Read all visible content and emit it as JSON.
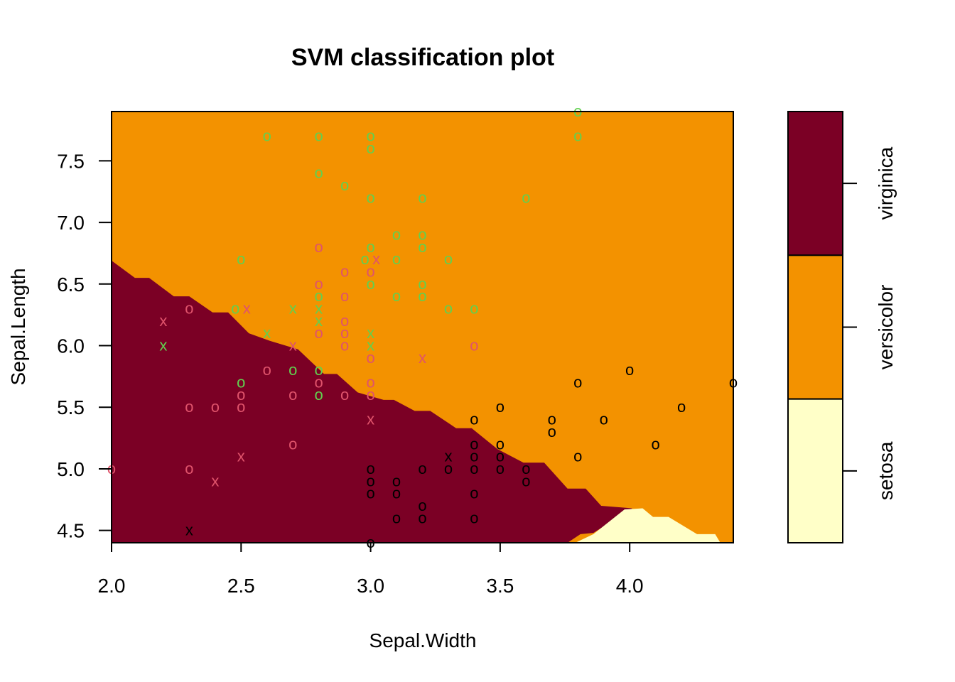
{
  "chart_data": {
    "type": "scatter",
    "title": "SVM classification plot",
    "xlabel": "Sepal.Width",
    "ylabel": "Sepal.Length",
    "xlim": [
      2.0,
      4.4
    ],
    "ylim": [
      4.4,
      7.9
    ],
    "xticks": [
      "2.0",
      "2.5",
      "3.0",
      "3.5",
      "4.0"
    ],
    "yticks": [
      "4.5",
      "5.0",
      "5.5",
      "6.0",
      "6.5",
      "7.0",
      "7.5"
    ],
    "grid": false,
    "classes": [
      {
        "name": "setosa",
        "region_color": "#FFFFC8",
        "point_color": "#000000"
      },
      {
        "name": "versicolor",
        "region_color": "#F39200",
        "point_color": "#DF536B"
      },
      {
        "name": "virginica",
        "region_color": "#7B0025",
        "point_color": "#61D04F"
      }
    ],
    "legend": {
      "placement": "right",
      "labels": [
        "virginica",
        "versicolor",
        "setosa"
      ]
    },
    "background_class": "versicolor",
    "regions": [
      {
        "class": "virginica",
        "polygon": [
          [
            2.0,
            6.69
          ],
          [
            2.09,
            6.55
          ],
          [
            2.145,
            6.55
          ],
          [
            2.24,
            6.4
          ],
          [
            2.3,
            6.4
          ],
          [
            2.39,
            6.27
          ],
          [
            2.45,
            6.27
          ],
          [
            2.53,
            6.1
          ],
          [
            2.61,
            6.04
          ],
          [
            2.72,
            5.97
          ],
          [
            2.82,
            5.77
          ],
          [
            2.87,
            5.77
          ],
          [
            2.95,
            5.62
          ],
          [
            3.05,
            5.56
          ],
          [
            3.09,
            5.56
          ],
          [
            3.17,
            5.47
          ],
          [
            3.23,
            5.47
          ],
          [
            3.33,
            5.33
          ],
          [
            3.39,
            5.33
          ],
          [
            3.49,
            5.16
          ],
          [
            3.59,
            5.05
          ],
          [
            3.67,
            5.05
          ],
          [
            3.76,
            4.84
          ],
          [
            3.83,
            4.84
          ],
          [
            3.89,
            4.7
          ],
          [
            4.01,
            4.68
          ],
          [
            3.86,
            4.48
          ],
          [
            3.81,
            4.47
          ],
          [
            3.76,
            4.4
          ],
          [
            2.0,
            4.4
          ]
        ]
      },
      {
        "class": "setosa",
        "polygon": [
          [
            3.79,
            4.4
          ],
          [
            3.86,
            4.47
          ],
          [
            3.98,
            4.67
          ],
          [
            4.05,
            4.68
          ],
          [
            4.09,
            4.61
          ],
          [
            4.15,
            4.61
          ],
          [
            4.26,
            4.47
          ],
          [
            4.33,
            4.47
          ],
          [
            4.35,
            4.4
          ]
        ]
      }
    ],
    "points": [
      {
        "x": 2.6,
        "y": 7.7,
        "class": "virginica",
        "sv": false
      },
      {
        "x": 2.8,
        "y": 7.7,
        "class": "virginica",
        "sv": false
      },
      {
        "x": 3.0,
        "y": 7.7,
        "class": "virginica",
        "sv": false
      },
      {
        "x": 3.0,
        "y": 7.6,
        "class": "virginica",
        "sv": false
      },
      {
        "x": 3.8,
        "y": 7.9,
        "class": "virginica",
        "sv": false
      },
      {
        "x": 3.8,
        "y": 7.7,
        "class": "virginica",
        "sv": false
      },
      {
        "x": 2.8,
        "y": 7.4,
        "class": "virginica",
        "sv": false
      },
      {
        "x": 2.9,
        "y": 7.3,
        "class": "virginica",
        "sv": false
      },
      {
        "x": 3.0,
        "y": 7.2,
        "class": "virginica",
        "sv": false
      },
      {
        "x": 3.2,
        "y": 7.2,
        "class": "virginica",
        "sv": false
      },
      {
        "x": 3.6,
        "y": 7.2,
        "class": "virginica",
        "sv": false
      },
      {
        "x": 3.1,
        "y": 6.9,
        "class": "virginica",
        "sv": false
      },
      {
        "x": 3.2,
        "y": 6.9,
        "class": "virginica",
        "sv": false
      },
      {
        "x": 3.0,
        "y": 6.8,
        "class": "virginica",
        "sv": false
      },
      {
        "x": 3.2,
        "y": 6.8,
        "class": "virginica",
        "sv": false
      },
      {
        "x": 2.5,
        "y": 6.7,
        "class": "virginica",
        "sv": false
      },
      {
        "x": 3.0,
        "y": 6.7,
        "class": "virginica",
        "sv": false
      },
      {
        "x": 3.1,
        "y": 6.7,
        "class": "virginica",
        "sv": false
      },
      {
        "x": 3.3,
        "y": 6.7,
        "class": "virginica",
        "sv": false
      },
      {
        "x": 3.0,
        "y": 6.5,
        "class": "virginica",
        "sv": false
      },
      {
        "x": 3.2,
        "y": 6.5,
        "class": "virginica",
        "sv": false
      },
      {
        "x": 2.8,
        "y": 6.4,
        "class": "virginica",
        "sv": false
      },
      {
        "x": 3.1,
        "y": 6.4,
        "class": "virginica",
        "sv": false
      },
      {
        "x": 3.2,
        "y": 6.4,
        "class": "virginica",
        "sv": false
      },
      {
        "x": 3.3,
        "y": 6.3,
        "class": "virginica",
        "sv": false
      },
      {
        "x": 3.4,
        "y": 6.3,
        "class": "virginica",
        "sv": false
      },
      {
        "x": 2.5,
        "y": 6.3,
        "class": "virginica",
        "sv": false
      },
      {
        "x": 2.5,
        "y": 5.7,
        "class": "virginica",
        "sv": false
      },
      {
        "x": 2.7,
        "y": 5.8,
        "class": "virginica",
        "sv": false
      },
      {
        "x": 2.8,
        "y": 5.8,
        "class": "virginica",
        "sv": false
      },
      {
        "x": 2.8,
        "y": 5.6,
        "class": "virginica",
        "sv": false
      },
      {
        "x": 2.7,
        "y": 6.3,
        "class": "virginica",
        "sv": true
      },
      {
        "x": 2.8,
        "y": 6.3,
        "class": "virginica",
        "sv": true
      },
      {
        "x": 2.8,
        "y": 6.2,
        "class": "virginica",
        "sv": true
      },
      {
        "x": 2.6,
        "y": 6.1,
        "class": "virginica",
        "sv": true
      },
      {
        "x": 2.2,
        "y": 6.0,
        "class": "virginica",
        "sv": true
      },
      {
        "x": 3.0,
        "y": 6.1,
        "class": "virginica",
        "sv": true
      },
      {
        "x": 3.0,
        "y": 6.0,
        "class": "virginica",
        "sv": true
      },
      {
        "x": 2.8,
        "y": 6.8,
        "class": "versicolor",
        "sv": false
      },
      {
        "x": 2.9,
        "y": 6.6,
        "class": "versicolor",
        "sv": false
      },
      {
        "x": 3.0,
        "y": 6.6,
        "class": "versicolor",
        "sv": false
      },
      {
        "x": 2.8,
        "y": 6.5,
        "class": "versicolor",
        "sv": false
      },
      {
        "x": 2.9,
        "y": 6.4,
        "class": "versicolor",
        "sv": false
      },
      {
        "x": 2.3,
        "y": 6.3,
        "class": "versicolor",
        "sv": false
      },
      {
        "x": 2.9,
        "y": 6.2,
        "class": "versicolor",
        "sv": false
      },
      {
        "x": 2.8,
        "y": 6.1,
        "class": "versicolor",
        "sv": false
      },
      {
        "x": 2.9,
        "y": 6.1,
        "class": "versicolor",
        "sv": false
      },
      {
        "x": 2.9,
        "y": 6.0,
        "class": "versicolor",
        "sv": false
      },
      {
        "x": 3.0,
        "y": 5.9,
        "class": "versicolor",
        "sv": false
      },
      {
        "x": 3.4,
        "y": 6.0,
        "class": "versicolor",
        "sv": false
      },
      {
        "x": 2.6,
        "y": 5.8,
        "class": "versicolor",
        "sv": false
      },
      {
        "x": 2.8,
        "y": 5.7,
        "class": "versicolor",
        "sv": false
      },
      {
        "x": 3.0,
        "y": 5.7,
        "class": "versicolor",
        "sv": false
      },
      {
        "x": 2.5,
        "y": 5.6,
        "class": "versicolor",
        "sv": false
      },
      {
        "x": 2.7,
        "y": 5.6,
        "class": "versicolor",
        "sv": false
      },
      {
        "x": 2.9,
        "y": 5.6,
        "class": "versicolor",
        "sv": false
      },
      {
        "x": 3.0,
        "y": 5.6,
        "class": "versicolor",
        "sv": false
      },
      {
        "x": 2.3,
        "y": 5.5,
        "class": "versicolor",
        "sv": false
      },
      {
        "x": 2.4,
        "y": 5.5,
        "class": "versicolor",
        "sv": false
      },
      {
        "x": 2.5,
        "y": 5.5,
        "class": "versicolor",
        "sv": false
      },
      {
        "x": 2.7,
        "y": 5.2,
        "class": "versicolor",
        "sv": false
      },
      {
        "x": 2.0,
        "y": 5.0,
        "class": "versicolor",
        "sv": false
      },
      {
        "x": 2.3,
        "y": 5.0,
        "class": "versicolor",
        "sv": false
      },
      {
        "x": 2.5,
        "y": 6.3,
        "class": "versicolor",
        "sv": true
      },
      {
        "x": 3.0,
        "y": 6.7,
        "class": "versicolor",
        "sv": true
      },
      {
        "x": 2.2,
        "y": 6.2,
        "class": "versicolor",
        "sv": true
      },
      {
        "x": 2.7,
        "y": 6.0,
        "class": "versicolor",
        "sv": true
      },
      {
        "x": 3.2,
        "y": 5.9,
        "class": "versicolor",
        "sv": true
      },
      {
        "x": 3.0,
        "y": 5.4,
        "class": "versicolor",
        "sv": true
      },
      {
        "x": 2.5,
        "y": 5.1,
        "class": "versicolor",
        "sv": true
      },
      {
        "x": 2.4,
        "y": 4.9,
        "class": "versicolor",
        "sv": true
      },
      {
        "x": 3.4,
        "y": 5.4,
        "class": "setosa",
        "sv": false
      },
      {
        "x": 3.5,
        "y": 5.5,
        "class": "setosa",
        "sv": false
      },
      {
        "x": 3.8,
        "y": 5.7,
        "class": "setosa",
        "sv": false
      },
      {
        "x": 4.0,
        "y": 5.8,
        "class": "setosa",
        "sv": false
      },
      {
        "x": 4.4,
        "y": 5.7,
        "class": "setosa",
        "sv": false
      },
      {
        "x": 3.7,
        "y": 5.4,
        "class": "setosa",
        "sv": false
      },
      {
        "x": 3.9,
        "y": 5.4,
        "class": "setosa",
        "sv": false
      },
      {
        "x": 3.7,
        "y": 5.3,
        "class": "setosa",
        "sv": false
      },
      {
        "x": 4.2,
        "y": 5.5,
        "class": "setosa",
        "sv": false
      },
      {
        "x": 4.1,
        "y": 5.2,
        "class": "setosa",
        "sv": false
      },
      {
        "x": 3.8,
        "y": 5.1,
        "class": "setosa",
        "sv": false
      },
      {
        "x": 3.4,
        "y": 5.2,
        "class": "setosa",
        "sv": false
      },
      {
        "x": 3.5,
        "y": 5.2,
        "class": "setosa",
        "sv": false
      },
      {
        "x": 3.4,
        "y": 5.1,
        "class": "setosa",
        "sv": false
      },
      {
        "x": 3.5,
        "y": 5.1,
        "class": "setosa",
        "sv": false
      },
      {
        "x": 3.0,
        "y": 5.0,
        "class": "setosa",
        "sv": false
      },
      {
        "x": 3.2,
        "y": 5.0,
        "class": "setosa",
        "sv": false
      },
      {
        "x": 3.3,
        "y": 5.0,
        "class": "setosa",
        "sv": false
      },
      {
        "x": 3.4,
        "y": 5.0,
        "class": "setosa",
        "sv": false
      },
      {
        "x": 3.5,
        "y": 5.0,
        "class": "setosa",
        "sv": false
      },
      {
        "x": 3.6,
        "y": 5.0,
        "class": "setosa",
        "sv": false
      },
      {
        "x": 3.0,
        "y": 4.9,
        "class": "setosa",
        "sv": false
      },
      {
        "x": 3.1,
        "y": 4.9,
        "class": "setosa",
        "sv": false
      },
      {
        "x": 3.6,
        "y": 4.9,
        "class": "setosa",
        "sv": false
      },
      {
        "x": 3.0,
        "y": 4.8,
        "class": "setosa",
        "sv": false
      },
      {
        "x": 3.1,
        "y": 4.8,
        "class": "setosa",
        "sv": false
      },
      {
        "x": 3.4,
        "y": 4.8,
        "class": "setosa",
        "sv": false
      },
      {
        "x": 3.2,
        "y": 4.7,
        "class": "setosa",
        "sv": false
      },
      {
        "x": 3.1,
        "y": 4.6,
        "class": "setosa",
        "sv": false
      },
      {
        "x": 3.2,
        "y": 4.6,
        "class": "setosa",
        "sv": false
      },
      {
        "x": 3.4,
        "y": 4.6,
        "class": "setosa",
        "sv": false
      },
      {
        "x": 3.0,
        "y": 4.4,
        "class": "setosa",
        "sv": false
      },
      {
        "x": 3.3,
        "y": 5.1,
        "class": "setosa",
        "sv": true
      },
      {
        "x": 2.3,
        "y": 4.5,
        "class": "setosa",
        "sv": true
      }
    ],
    "symbols": {
      "data": "o",
      "support_vector": "x"
    }
  }
}
